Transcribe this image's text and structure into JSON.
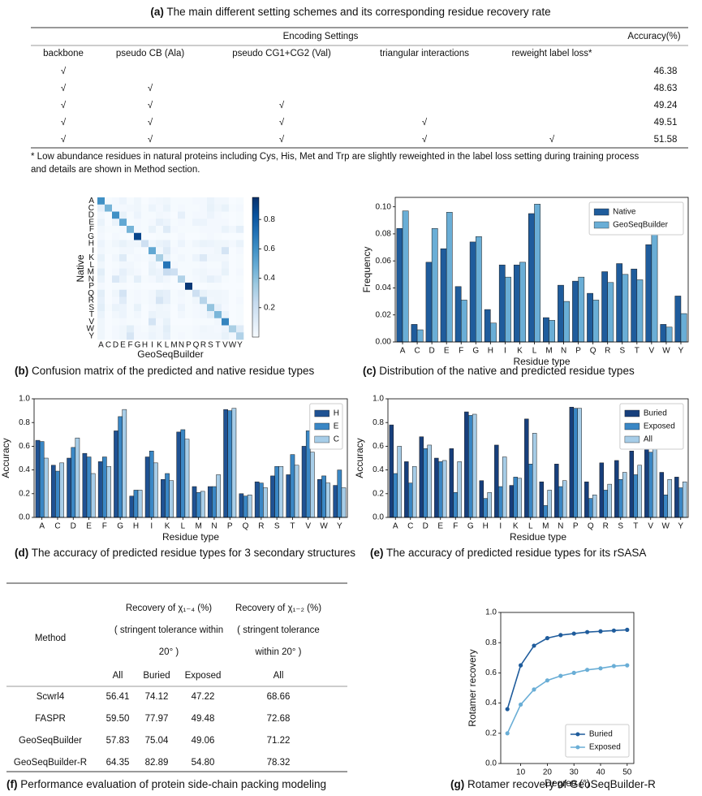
{
  "title": {
    "label": "(a)",
    "text": "The main different setting schemes and its corresponding residue recovery rate"
  },
  "table_a": {
    "group_header": "Encoding Settings",
    "accuracy_header": "Accuracy(%)",
    "columns": [
      "backbone",
      "pseudo CB (Ala)",
      "pseudo CG1+CG2 (Val)",
      "triangular interactions",
      "reweight label loss*"
    ],
    "rows": [
      {
        "checks": [
          "√"
        ],
        "accuracy": "46.38"
      },
      {
        "checks": [
          "√",
          "√"
        ],
        "accuracy": "48.63"
      },
      {
        "checks": [
          "√",
          "√",
          "√"
        ],
        "accuracy": "49.24"
      },
      {
        "checks": [
          "√",
          "√",
          "√",
          "√"
        ],
        "accuracy": "49.51"
      },
      {
        "checks": [
          "√",
          "√",
          "√",
          "√",
          "√"
        ],
        "accuracy": "51.58"
      }
    ],
    "footnote": [
      "* Low abundance residues in natural proteins including Cys, His, Met and Trp are slightly reweighted in the label loss setting during training process",
      "and details are shown in Method section."
    ]
  },
  "chart_data": [
    {
      "type": "heatmap",
      "label": "(b)",
      "caption": "Confusion matrix of the predicted and native residue types",
      "xlabel": "GeoSeqBuilder",
      "ylabel": "Native",
      "categories": [
        "A",
        "C",
        "D",
        "E",
        "F",
        "G",
        "H",
        "I",
        "K",
        "L",
        "M",
        "N",
        "P",
        "Q",
        "R",
        "S",
        "T",
        "V",
        "W",
        "Y"
      ],
      "clim": [
        0,
        0.95
      ],
      "cticks": [
        0.2,
        0.4,
        0.6,
        0.8
      ],
      "colormap": "Blues",
      "values": [
        [
          0.6,
          0.01,
          0.02,
          0.05,
          0.01,
          0.04,
          0.0,
          0.02,
          0.03,
          0.04,
          0.01,
          0.01,
          0.01,
          0.02,
          0.02,
          0.06,
          0.03,
          0.03,
          0.0,
          0.01
        ],
        [
          0.08,
          0.45,
          0.02,
          0.02,
          0.03,
          0.04,
          0.01,
          0.05,
          0.02,
          0.06,
          0.01,
          0.02,
          0.01,
          0.01,
          0.02,
          0.07,
          0.04,
          0.07,
          0.01,
          0.02
        ],
        [
          0.03,
          0.0,
          0.6,
          0.07,
          0.01,
          0.05,
          0.01,
          0.01,
          0.03,
          0.02,
          0.0,
          0.08,
          0.01,
          0.02,
          0.02,
          0.05,
          0.02,
          0.01,
          0.0,
          0.01
        ],
        [
          0.06,
          0.0,
          0.06,
          0.5,
          0.01,
          0.02,
          0.01,
          0.02,
          0.08,
          0.05,
          0.01,
          0.02,
          0.01,
          0.05,
          0.05,
          0.02,
          0.02,
          0.02,
          0.0,
          0.01
        ],
        [
          0.03,
          0.01,
          0.01,
          0.02,
          0.45,
          0.02,
          0.01,
          0.07,
          0.01,
          0.12,
          0.02,
          0.01,
          0.01,
          0.01,
          0.02,
          0.02,
          0.02,
          0.06,
          0.03,
          0.09
        ],
        [
          0.02,
          0.0,
          0.02,
          0.01,
          0.0,
          0.87,
          0.0,
          0.0,
          0.01,
          0.01,
          0.0,
          0.02,
          0.0,
          0.0,
          0.01,
          0.02,
          0.01,
          0.0,
          0.0,
          0.0
        ],
        [
          0.05,
          0.01,
          0.04,
          0.07,
          0.04,
          0.04,
          0.2,
          0.03,
          0.06,
          0.08,
          0.01,
          0.05,
          0.01,
          0.04,
          0.06,
          0.05,
          0.04,
          0.04,
          0.02,
          0.06
        ],
        [
          0.03,
          0.01,
          0.01,
          0.03,
          0.03,
          0.01,
          0.0,
          0.5,
          0.03,
          0.12,
          0.02,
          0.01,
          0.01,
          0.01,
          0.02,
          0.02,
          0.04,
          0.17,
          0.0,
          0.02
        ],
        [
          0.07,
          0.0,
          0.03,
          0.12,
          0.01,
          0.02,
          0.01,
          0.03,
          0.33,
          0.06,
          0.01,
          0.03,
          0.01,
          0.05,
          0.13,
          0.03,
          0.03,
          0.03,
          0.0,
          0.01
        ],
        [
          0.04,
          0.0,
          0.01,
          0.03,
          0.03,
          0.01,
          0.0,
          0.06,
          0.02,
          0.7,
          0.02,
          0.01,
          0.01,
          0.01,
          0.02,
          0.01,
          0.01,
          0.05,
          0.0,
          0.01
        ],
        [
          0.1,
          0.0,
          0.02,
          0.08,
          0.04,
          0.02,
          0.0,
          0.07,
          0.05,
          0.23,
          0.2,
          0.01,
          0.01,
          0.03,
          0.04,
          0.02,
          0.02,
          0.07,
          0.0,
          0.02
        ],
        [
          0.06,
          0.0,
          0.14,
          0.06,
          0.01,
          0.09,
          0.01,
          0.02,
          0.06,
          0.03,
          0.0,
          0.3,
          0.01,
          0.02,
          0.04,
          0.08,
          0.05,
          0.01,
          0.0,
          0.01
        ],
        [
          0.02,
          0.0,
          0.01,
          0.01,
          0.0,
          0.01,
          0.0,
          0.0,
          0.0,
          0.01,
          0.0,
          0.0,
          0.92,
          0.0,
          0.0,
          0.01,
          0.01,
          0.0,
          0.0,
          0.0
        ],
        [
          0.1,
          0.0,
          0.04,
          0.17,
          0.01,
          0.02,
          0.01,
          0.03,
          0.1,
          0.08,
          0.01,
          0.03,
          0.01,
          0.2,
          0.07,
          0.04,
          0.04,
          0.03,
          0.0,
          0.01
        ],
        [
          0.08,
          0.0,
          0.02,
          0.11,
          0.01,
          0.02,
          0.01,
          0.03,
          0.16,
          0.08,
          0.01,
          0.02,
          0.01,
          0.04,
          0.28,
          0.03,
          0.04,
          0.03,
          0.0,
          0.02
        ],
        [
          0.1,
          0.01,
          0.06,
          0.05,
          0.01,
          0.07,
          0.0,
          0.02,
          0.04,
          0.03,
          0.0,
          0.05,
          0.01,
          0.02,
          0.03,
          0.38,
          0.08,
          0.02,
          0.0,
          0.01
        ],
        [
          0.06,
          0.0,
          0.03,
          0.05,
          0.01,
          0.03,
          0.0,
          0.06,
          0.04,
          0.04,
          0.0,
          0.03,
          0.01,
          0.02,
          0.03,
          0.09,
          0.44,
          0.06,
          0.0,
          0.01
        ],
        [
          0.04,
          0.0,
          0.01,
          0.02,
          0.01,
          0.01,
          0.0,
          0.17,
          0.02,
          0.07,
          0.0,
          0.0,
          0.0,
          0.01,
          0.01,
          0.01,
          0.03,
          0.64,
          0.0,
          0.01
        ],
        [
          0.04,
          0.0,
          0.02,
          0.04,
          0.1,
          0.02,
          0.01,
          0.04,
          0.03,
          0.1,
          0.01,
          0.01,
          0.01,
          0.02,
          0.04,
          0.03,
          0.02,
          0.05,
          0.32,
          0.12
        ],
        [
          0.04,
          0.0,
          0.02,
          0.04,
          0.16,
          0.02,
          0.02,
          0.05,
          0.03,
          0.08,
          0.01,
          0.02,
          0.01,
          0.02,
          0.03,
          0.03,
          0.03,
          0.07,
          0.03,
          0.3
        ]
      ]
    },
    {
      "type": "bar",
      "label": "(c)",
      "caption": "Distribution of the native and predicted residue types",
      "xlabel": "Residue type",
      "ylabel": "Frequency",
      "legend": "upper right",
      "categories": [
        "A",
        "C",
        "D",
        "E",
        "F",
        "G",
        "H",
        "I",
        "K",
        "L",
        "M",
        "N",
        "P",
        "Q",
        "R",
        "S",
        "T",
        "V",
        "W",
        "Y"
      ],
      "ylim": [
        0,
        0.107
      ],
      "yticks": [
        {
          "value": 0,
          "label": "0.00"
        },
        0.02,
        0.04,
        0.06,
        0.08,
        {
          "value": 0.1,
          "label": "0.10"
        }
      ],
      "series": [
        {
          "name": "Native",
          "color": "#1f5c9c",
          "values": [
            0.084,
            0.013,
            0.059,
            0.069,
            0.041,
            0.074,
            0.024,
            0.057,
            0.057,
            0.095,
            0.018,
            0.042,
            0.045,
            0.036,
            0.052,
            0.058,
            0.054,
            0.072,
            0.013,
            0.034
          ]
        },
        {
          "name": "GeoSeqBuilder",
          "color": "#6aaed6",
          "values": [
            0.097,
            0.009,
            0.084,
            0.096,
            0.031,
            0.078,
            0.014,
            0.048,
            0.059,
            0.102,
            0.016,
            0.03,
            0.048,
            0.031,
            0.044,
            0.05,
            0.046,
            0.082,
            0.011,
            0.021
          ]
        }
      ]
    },
    {
      "type": "bar",
      "label": "(d)",
      "caption": "The accuracy of predicted residue types for 3 secondary structures",
      "xlabel": "Residue type",
      "ylabel": "Accuracy",
      "legend": "upper right",
      "categories": [
        "A",
        "C",
        "D",
        "E",
        "F",
        "G",
        "H",
        "I",
        "K",
        "L",
        "M",
        "N",
        "P",
        "Q",
        "R",
        "S",
        "T",
        "V",
        "W",
        "Y"
      ],
      "ylim": [
        0,
        1
      ],
      "yticks": [
        {
          "value": 0,
          "label": "0.0"
        },
        0.2,
        0.4,
        0.6,
        0.8,
        {
          "value": 1,
          "label": "1.0"
        }
      ],
      "series": [
        {
          "name": "H",
          "color": "#1f5293",
          "values": [
            0.65,
            0.44,
            0.5,
            0.54,
            0.47,
            0.73,
            0.18,
            0.51,
            0.32,
            0.72,
            0.26,
            0.26,
            0.91,
            0.2,
            0.3,
            0.35,
            0.36,
            0.6,
            0.32,
            0.27
          ]
        },
        {
          "name": "E",
          "color": "#3a87c5",
          "values": [
            0.64,
            0.39,
            0.59,
            0.51,
            0.51,
            0.85,
            0.23,
            0.56,
            0.37,
            0.74,
            0.21,
            0.26,
            0.9,
            0.18,
            0.29,
            0.43,
            0.53,
            0.73,
            0.35,
            0.4
          ]
        },
        {
          "name": "C",
          "color": "#a7cde8",
          "values": [
            0.5,
            0.46,
            0.67,
            0.37,
            0.43,
            0.91,
            0.23,
            0.46,
            0.31,
            0.66,
            0.22,
            0.36,
            0.92,
            0.19,
            0.25,
            0.43,
            0.44,
            0.55,
            0.29,
            0.25
          ]
        }
      ]
    },
    {
      "type": "bar",
      "label": "(e)",
      "caption": "The accuracy of  predicted  residue types for its rSASA",
      "xlabel": "Residue type",
      "ylabel": "Accuracy",
      "legend": "upper right",
      "categories": [
        "A",
        "C",
        "D",
        "E",
        "F",
        "G",
        "H",
        "I",
        "K",
        "L",
        "M",
        "N",
        "P",
        "Q",
        "R",
        "S",
        "T",
        "V",
        "W",
        "Y"
      ],
      "ylim": [
        0,
        1
      ],
      "yticks": [
        {
          "value": 0,
          "label": "0.0"
        },
        0.2,
        0.4,
        0.6,
        0.8,
        {
          "value": 1,
          "label": "1.0"
        }
      ],
      "series": [
        {
          "name": "Buried",
          "color": "#173f7c",
          "values": [
            0.78,
            0.47,
            0.68,
            0.5,
            0.58,
            0.89,
            0.31,
            0.61,
            0.27,
            0.83,
            0.3,
            0.45,
            0.93,
            0.3,
            0.46,
            0.48,
            0.56,
            0.8,
            0.38,
            0.34
          ]
        },
        {
          "name": "Exposed",
          "color": "#3a87c5",
          "values": [
            0.37,
            0.29,
            0.58,
            0.47,
            0.21,
            0.86,
            0.16,
            0.26,
            0.34,
            0.45,
            0.1,
            0.26,
            0.92,
            0.16,
            0.23,
            0.32,
            0.36,
            0.55,
            0.19,
            0.25
          ]
        },
        {
          "name": "All",
          "color": "#a7cde8",
          "values": [
            0.6,
            0.43,
            0.61,
            0.48,
            0.47,
            0.87,
            0.21,
            0.51,
            0.33,
            0.71,
            0.23,
            0.31,
            0.92,
            0.19,
            0.28,
            0.38,
            0.44,
            0.64,
            0.32,
            0.3
          ]
        }
      ]
    },
    {
      "type": "line",
      "label": "(g)",
      "caption": "Rotamer recovery of GeoSeqBuilder-R",
      "xlabel": "Degree (°)",
      "ylabel": "Rotamer recovery",
      "legend": "lower right",
      "x": [
        5,
        10,
        15,
        20,
        25,
        30,
        35,
        40,
        45,
        50
      ],
      "xlim": [
        2.5,
        52.5
      ],
      "xticks": [
        10,
        20,
        30,
        40,
        50
      ],
      "ylim": [
        0,
        1
      ],
      "yticks": [
        {
          "value": 0,
          "label": "0.0"
        },
        0.2,
        0.4,
        0.6,
        0.8,
        {
          "value": 1,
          "label": "1.0"
        }
      ],
      "series": [
        {
          "name": "Buried",
          "color": "#1f5c9c",
          "values": [
            0.36,
            0.65,
            0.78,
            0.83,
            0.85,
            0.86,
            0.87,
            0.875,
            0.88,
            0.885
          ]
        },
        {
          "name": "Exposed",
          "color": "#6aaed6",
          "values": [
            0.2,
            0.39,
            0.49,
            0.55,
            0.58,
            0.6,
            0.62,
            0.63,
            0.645,
            0.65
          ]
        }
      ]
    }
  ],
  "table_f": {
    "label": "(f)",
    "caption": "Performance evaluation of protein side-chain packing modeling",
    "method_header": "Method",
    "group1_header": [
      "Recovery of χ₁₋₄ (%)",
      "( stringent tolerance within",
      "20° )"
    ],
    "group2_header": [
      "Recovery of χ₁₋₂ (%)",
      "( stringent tolerance",
      "within 20° )"
    ],
    "sub1": [
      "All",
      "Buried",
      "Exposed"
    ],
    "sub2": [
      "All"
    ],
    "rows": [
      [
        "Scwrl4",
        "56.41",
        "74.12",
        "47.22",
        "68.66"
      ],
      [
        "FASPR",
        "59.50",
        "77.97",
        "49.48",
        "72.68"
      ],
      [
        "GeoSeqBuilder",
        "57.83",
        "75.04",
        "49.06",
        "71.22"
      ],
      [
        "GeoSeqBuilder-R",
        "64.35",
        "82.89",
        "54.80",
        "78.32"
      ]
    ]
  }
}
